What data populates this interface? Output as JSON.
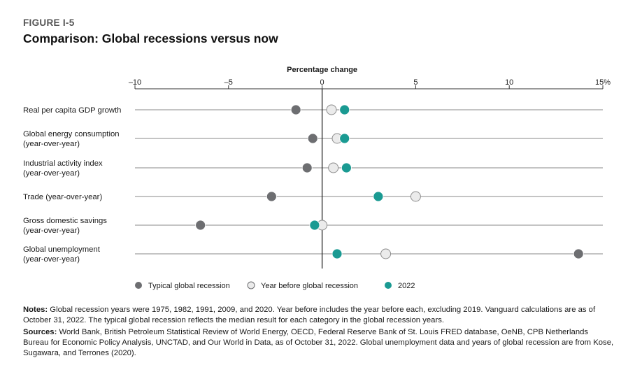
{
  "figure": {
    "label": "FIGURE I-5",
    "title": "Comparison: Global recessions versus now"
  },
  "chart_data": {
    "type": "dot-plot",
    "title": "Percentage change",
    "orientation": "horizontal",
    "axis_position": "top",
    "xlim": [
      -10,
      15
    ],
    "ticks": [
      -10,
      -5,
      0,
      5,
      10,
      15
    ],
    "tick_labels": [
      "–10",
      "–5",
      "0",
      "5",
      "10",
      "15%"
    ],
    "categories": [
      [
        "Real per capita GDP growth"
      ],
      [
        "Global energy consumption",
        "(year-over-year)"
      ],
      [
        "Industrial activity index",
        "(year-over-year)"
      ],
      [
        "Trade (year-over-year)"
      ],
      [
        "Gross domestic savings",
        "(year-over-year)"
      ],
      [
        "Global unemployment",
        "(year-over-year)"
      ]
    ],
    "series": [
      {
        "name": "Typical global recession",
        "color": "#6d6e71",
        "values": [
          -1.4,
          -0.5,
          -0.8,
          -2.7,
          -6.5,
          13.7
        ]
      },
      {
        "name": "Year before global recession",
        "color": "#ebebeb",
        "values": [
          0.5,
          0.8,
          0.6,
          5.0,
          0.0,
          3.4
        ]
      },
      {
        "name": "2022",
        "color": "#1a9a92",
        "values": [
          1.2,
          1.2,
          1.3,
          3.0,
          -0.4,
          0.8
        ]
      }
    ],
    "legend_position": "bottom"
  },
  "notes": {
    "notes_label": "Notes:",
    "notes_text": " Global recession years were 1975, 1982, 1991, 2009, and 2020. Year before includes the year before each, excluding 2019. Vanguard calculations are as of October 31, 2022. The typical global recession reflects the median result for each category in the global recession years.",
    "sources_label": "Sources:",
    "sources_text": " World Bank, British Petroleum Statistical Review of World Energy, OECD, Federal Reserve Bank of St. Louis FRED database, OeNB, CPB Netherlands Bureau for Economic Policy Analysis, UNCTAD, and Our World in Data, as of October 31, 2022. Global unemployment data and years of global recession are from Kose, Sugawara, and Terrones (2020)."
  }
}
